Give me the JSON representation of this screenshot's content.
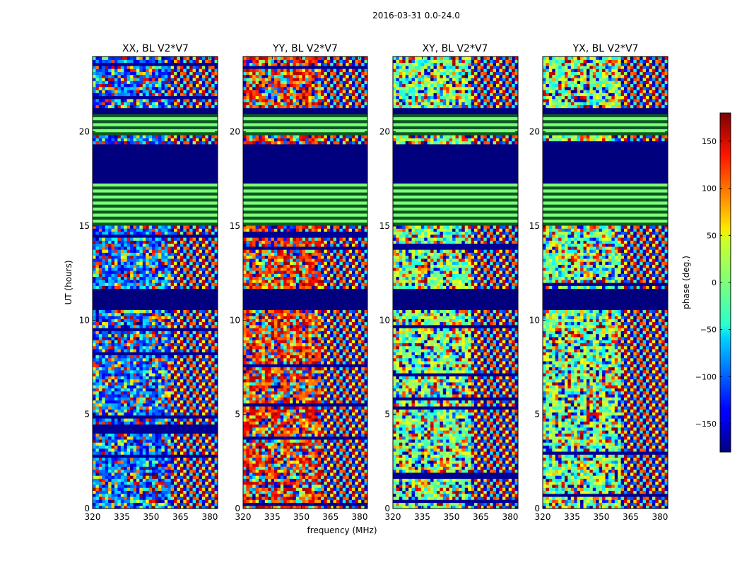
{
  "suptitle": "2016-03-31 0.0-24.0",
  "chart_data": {
    "type": "heatmap",
    "title": "2016-03-31 0.0-24.0",
    "xlabel": "frequency (MHz)",
    "ylabel": "UT (hours)",
    "xlim": [
      320,
      384
    ],
    "ylim": [
      0,
      24
    ],
    "x_ticks": [
      320,
      335,
      350,
      365,
      380
    ],
    "y_ticks": [
      0,
      5,
      10,
      15,
      20
    ],
    "panels": [
      {
        "title": "XX, BL V2*V7",
        "pol": "XX"
      },
      {
        "title": "YY, BL V2*V7",
        "pol": "YY"
      },
      {
        "title": "XY, BL V2*V7",
        "pol": "XY"
      },
      {
        "title": "YX, BL V2*V7",
        "pol": "YX"
      }
    ],
    "flagged_ut_ranges": [
      [
        10.6,
        11.6
      ],
      [
        17.3,
        19.3
      ],
      [
        20.9,
        21.3
      ]
    ],
    "flat_ut_ranges": [
      [
        15.0,
        17.2
      ],
      [
        19.9,
        20.9
      ]
    ],
    "colorbar": {
      "label": "phase (deg.)",
      "min": -180,
      "max": 180,
      "ticks": [
        -150,
        -100,
        -50,
        0,
        50,
        100,
        150
      ],
      "tick_labels": [
        "−150",
        "−100",
        "−50",
        "0",
        "50",
        "100",
        "150"
      ],
      "colormap": "jet"
    }
  }
}
